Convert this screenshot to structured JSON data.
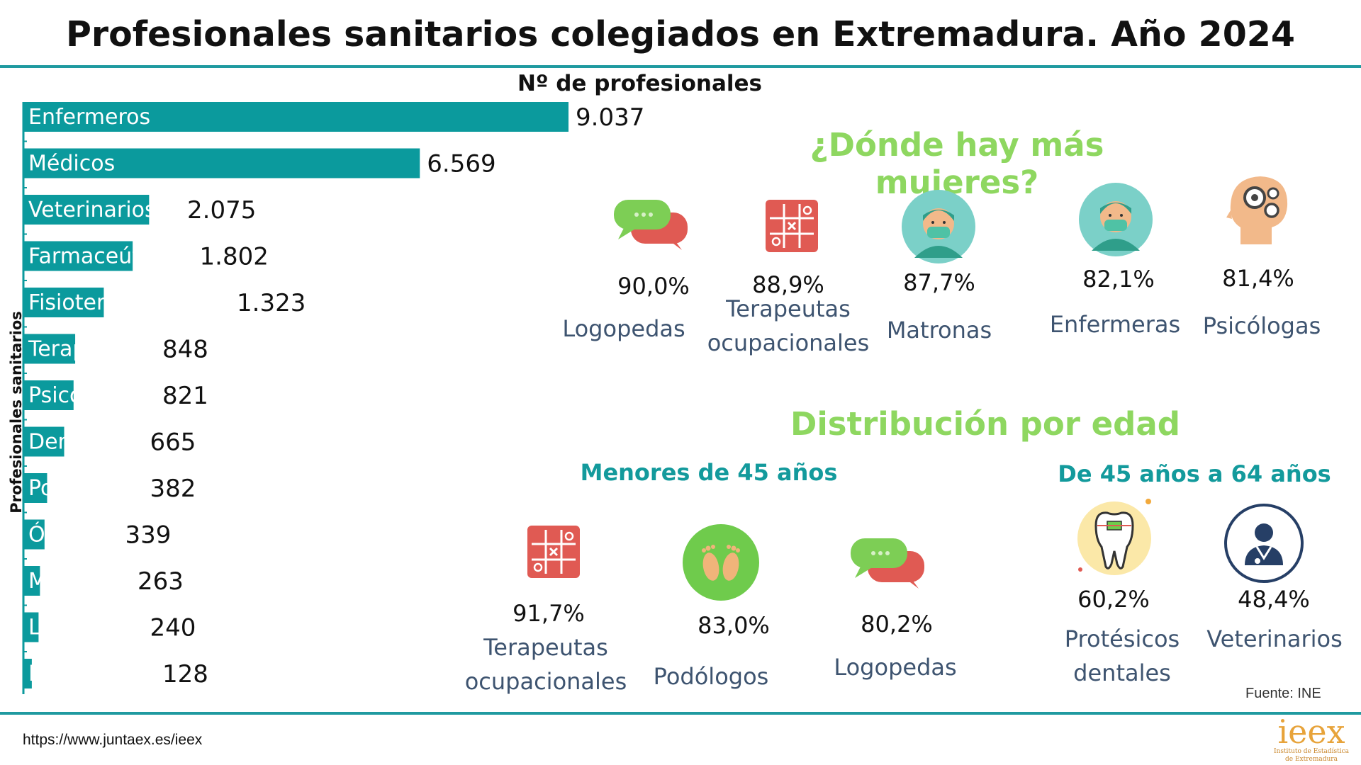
{
  "header": {
    "title": "Profesionales sanitarios colegiados en Extremadura. Año 2024"
  },
  "chart_data": {
    "type": "bar",
    "orientation": "horizontal",
    "title": "Nº de profesionales",
    "xlabel": "",
    "ylabel": "Profesionales sanitarios",
    "categories": [
      "Enfermeros",
      "Médicos",
      "Veterinarios",
      "Farmaceúticos",
      "Fisioteraperutas",
      "Terapeutas",
      "Psicólogos",
      "Dentistas",
      "Podólogos",
      "Ópticos",
      "Matronas",
      "Logopedas",
      "Protésicos"
    ],
    "values": [
      9037,
      6569,
      2075,
      1802,
      1323,
      848,
      821,
      665,
      382,
      339,
      263,
      240,
      128
    ],
    "value_labels": [
      "9.037",
      "6.569",
      "2.075",
      "1.802",
      "1.323",
      "848",
      "821",
      "665",
      "382",
      "339",
      "263",
      "240",
      "128"
    ],
    "color": "#0b9a9d"
  },
  "women": {
    "title": "¿Dónde hay más mujeres?",
    "items": [
      {
        "pct": "90,0%",
        "label": "Logopedas",
        "icon": "speech-bubbles-icon"
      },
      {
        "pct": "88,9%",
        "label": "Terapeutas ocupacionales",
        "icon": "tic-tac-toe-icon"
      },
      {
        "pct": "87,7%",
        "label": "Matronas",
        "icon": "nurse-mask-icon"
      },
      {
        "pct": "82,1%",
        "label": "Enfermeras",
        "icon": "nurse-mask-icon"
      },
      {
        "pct": "81,4%",
        "label": "Psicólogas",
        "icon": "head-gears-icon"
      }
    ]
  },
  "age": {
    "title": "Distribución por edad",
    "under45": {
      "title": "Menores de 45 años",
      "items": [
        {
          "pct": "91,7%",
          "label": "Terapeutas ocupacionales",
          "icon": "tic-tac-toe-icon"
        },
        {
          "pct": "83,0%",
          "label": "Podólogos",
          "icon": "footprints-icon"
        },
        {
          "pct": "80,2%",
          "label": "Logopedas",
          "icon": "speech-bubbles-icon"
        }
      ]
    },
    "from45to64": {
      "title": "De 45 años a 64 años",
      "items": [
        {
          "pct": "60,2%",
          "label": "Protésicos dentales",
          "icon": "tooth-icon"
        },
        {
          "pct": "48,4%",
          "label": "Veterinarios",
          "icon": "vet-doctor-icon"
        }
      ]
    }
  },
  "colors": {
    "bar": "#0b9a9d",
    "accent_green": "#8ed760",
    "accent_teal": "#139a9c",
    "label_blue": "#3e5470",
    "rule": "#1f9aa0"
  },
  "footer": {
    "source": "Fuente: INE",
    "url": "https://www.juntaex.es/ieex",
    "logo_word": "ieex",
    "logo_sub1": "Instituto de Estadística",
    "logo_sub2": "de Extremadura"
  }
}
